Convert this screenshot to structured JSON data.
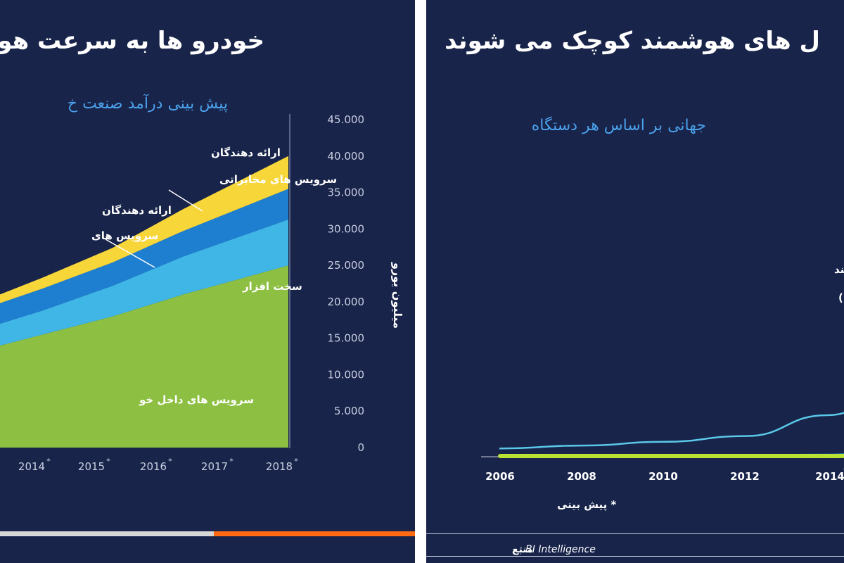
{
  "left_panel": {
    "title": "خودرو ها به سرعت هو",
    "subtitle": "پیش بینی درآمد صنعت خ",
    "colors": {
      "green": "#8dbf42",
      "lightblue": "#3fb6e6",
      "blue": "#1e7fd1",
      "yellow": "#f7d63a",
      "progress_grey": "#d6d6d6",
      "progress_orange": "#ff6a13"
    }
  },
  "right_panel": {
    "title": "ل های هوشمند کوچک می شوند",
    "subtitle": "جهانی بر اساس هر دستگاه",
    "forecast_note": "* پیش بینی",
    "source_label": "منبع",
    "source_value": ": BI Intelligence",
    "colors": {
      "smartphone_line": "#5ac8e8",
      "green_line": "#b9e234",
      "blue_line": "#1e88e5"
    }
  },
  "chart_data": [
    {
      "type": "area",
      "title": "پیش بینی درآمد صنعت خ",
      "x": [
        "2014*",
        "2015*",
        "2016*",
        "2017*",
        "2018*"
      ],
      "x_labels": [
        "2014",
        "2015",
        "2016",
        "2017",
        "2018"
      ],
      "x_marks": [
        "*",
        "*",
        "*",
        "*",
        "*"
      ],
      "ylabel": "میلیون یورو",
      "ylim": [
        0,
        45000
      ],
      "yticks": [
        "0",
        "5.000",
        "10.000",
        "15.000",
        "20.000",
        "25.000",
        "30.000",
        "35.000",
        "40.000",
        "45.000"
      ],
      "stacked": true,
      "series": [
        {
          "name": "سرویس های داخل خو",
          "values": [
            13000,
            15500,
            18000,
            21000,
            25000
          ]
        },
        {
          "name": "سخت افزار",
          "values": [
            2800,
            3300,
            4200,
            5200,
            6300
          ]
        },
        {
          "name": "ارائه دهندگان سرویس های",
          "values": [
            2700,
            3000,
            3200,
            3500,
            4200
          ]
        },
        {
          "name": "ارائه دهندگان سرویس های مخابراتی",
          "values": [
            1000,
            1500,
            2000,
            3000,
            4500
          ]
        }
      ],
      "annotations": [
        {
          "line1": "ارائه دهندگان",
          "line2": "سرویس های مخابراتی"
        },
        {
          "line1": "ارائه دهندگان",
          "line2": "سرویس های"
        },
        {
          "line1": "سخت افزار"
        },
        {
          "line1": "سرویس های داخل خو"
        }
      ]
    },
    {
      "type": "line",
      "title": "جهانی بر اساس هر دستگاه",
      "x_ticks": [
        "2006",
        "2008",
        "2010",
        "2012",
        "2014*"
      ],
      "x_labels": [
        "2006",
        "2008",
        "2010",
        "2012",
        "2014"
      ],
      "x_marks": [
        "",
        "",
        "",
        "",
        "*"
      ],
      "series": [
        {
          "name": "موبایل های هوشمند (به جز تبلت ها)",
          "x": [
            2006,
            2007,
            2008,
            2009,
            2010,
            2011,
            2012,
            2013,
            2014,
            2014.7
          ],
          "values": [
            0.8,
            1.1,
            1.5,
            2.1,
            4.3,
            7.8,
            11.2,
            15.2,
            16.8,
            18.5
          ]
        },
        {
          "name": "",
          "x": [
            2006,
            2009,
            2010,
            2011,
            2012,
            2013,
            2014,
            2014.7
          ],
          "values": [
            0.1,
            0.1,
            0.15,
            0.6,
            1.6,
            3.0,
            4.6,
            6.0
          ]
        },
        {
          "name": "",
          "x": [
            2006,
            2010,
            2011,
            2012,
            2012.5,
            2013,
            2013.5,
            2014,
            2014.7
          ],
          "values": [
            0,
            0,
            0.1,
            0.5,
            1.2,
            3.0,
            6.5,
            10.5,
            13.0
          ]
        }
      ],
      "annotations": [
        {
          "line1": "بایل های هوشمند",
          "line2": "(به جز تبلت ها)"
        }
      ]
    }
  ]
}
